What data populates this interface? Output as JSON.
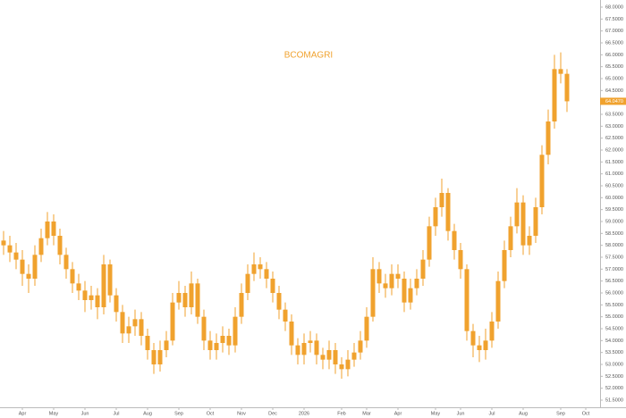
{
  "chart_data": {
    "type": "candlestick",
    "title": "BCOMAGRI",
    "color": "#f0a22e",
    "categories": [
      null,
      null,
      null,
      "Apr",
      null,
      null,
      null,
      null,
      "May",
      null,
      null,
      null,
      null,
      "Jun",
      null,
      null,
      null,
      null,
      "Jul",
      null,
      null,
      null,
      null,
      "Aug",
      null,
      null,
      null,
      null,
      "Sep",
      null,
      null,
      null,
      null,
      "Oct",
      null,
      null,
      null,
      null,
      "Nov",
      null,
      null,
      null,
      null,
      "Dec",
      null,
      null,
      null,
      null,
      "2026",
      null,
      null,
      null,
      null,
      null,
      "Feb",
      null,
      null,
      null,
      "Mar",
      null,
      null,
      null,
      null,
      "Apr",
      null,
      null,
      null,
      null,
      null,
      "May",
      null,
      null,
      null,
      "Jun",
      null,
      null,
      null,
      null,
      "Jul",
      null,
      null,
      null,
      null,
      "Aug",
      null,
      null,
      null,
      null,
      null,
      "Sep",
      null,
      null,
      null,
      "Oct",
      null
    ],
    "open": [
      58.2,
      58.0,
      57.7,
      57.4,
      56.8,
      56.6,
      57.6,
      58.3,
      59.0,
      58.4,
      57.6,
      57.0,
      56.4,
      56.1,
      55.7,
      55.9,
      55.4,
      57.2,
      55.9,
      55.2,
      54.3,
      54.6,
      54.9,
      54.2,
      53.6,
      53.0,
      53.6,
      54.0,
      55.6,
      56.0,
      55.4,
      56.4,
      55.0,
      54.0,
      53.6,
      53.9,
      54.2,
      53.8,
      55.0,
      56.0,
      56.8,
      57.2,
      57.0,
      56.6,
      56.0,
      55.3,
      54.8,
      53.8,
      53.4,
      53.9,
      54.0,
      53.4,
      53.2,
      53.6,
      53.0,
      52.8,
      53.2,
      53.5,
      54.0,
      55.0,
      57.0,
      56.4,
      56.2,
      56.8,
      56.6,
      55.6,
      56.2,
      56.6,
      57.4,
      58.8,
      59.6,
      60.2,
      58.6,
      57.8,
      57.0,
      54.4,
      53.8,
      53.6,
      54.0,
      54.8,
      56.5,
      57.8,
      58.8,
      59.8,
      58.0,
      58.4,
      59.6,
      61.8,
      63.2,
      65.4,
      65.2,
      null,
      null,
      null,
      null
    ],
    "high": [
      58.6,
      58.4,
      58.1,
      57.8,
      57.2,
      58.0,
      58.7,
      59.4,
      59.3,
      58.7,
      57.9,
      57.3,
      56.8,
      56.5,
      56.3,
      56.2,
      57.6,
      57.4,
      56.2,
      55.5,
      55.0,
      55.3,
      55.2,
      54.5,
      53.9,
      54.0,
      54.4,
      56.0,
      56.5,
      56.3,
      56.9,
      56.6,
      55.3,
      54.4,
      54.3,
      54.6,
      54.5,
      55.4,
      56.4,
      57.2,
      57.7,
      57.5,
      57.3,
      56.9,
      56.3,
      55.6,
      55.1,
      54.1,
      54.3,
      54.4,
      54.3,
      53.7,
      54.0,
      53.9,
      53.3,
      53.6,
      53.9,
      54.4,
      55.4,
      57.5,
      57.3,
      56.8,
      57.2,
      57.2,
      56.9,
      56.6,
      57.0,
      57.8,
      59.2,
      60.0,
      60.8,
      60.4,
      58.9,
      58.1,
      57.2,
      54.7,
      54.2,
      54.5,
      55.2,
      56.9,
      58.2,
      59.2,
      60.4,
      60.1,
      58.8,
      60.0,
      62.2,
      63.7,
      66.0,
      66.1,
      65.4,
      null,
      null,
      null,
      null
    ],
    "low": [
      57.6,
      57.3,
      57.0,
      56.3,
      56.0,
      56.3,
      57.3,
      58.0,
      58.0,
      57.2,
      56.6,
      56.0,
      55.7,
      55.2,
      55.3,
      54.9,
      55.1,
      55.6,
      54.8,
      53.9,
      53.9,
      54.2,
      53.8,
      53.2,
      52.6,
      52.7,
      53.3,
      53.8,
      55.3,
      55.0,
      55.1,
      54.7,
      53.6,
      53.2,
      53.2,
      53.5,
      53.4,
      53.5,
      54.7,
      55.7,
      56.5,
      56.6,
      56.2,
      55.6,
      54.9,
      54.4,
      53.4,
      53.0,
      53.0,
      53.5,
      53.0,
      52.8,
      52.8,
      52.6,
      52.4,
      52.5,
      52.9,
      53.2,
      53.7,
      54.8,
      56.0,
      55.8,
      55.9,
      56.2,
      55.2,
      55.3,
      55.9,
      56.3,
      57.1,
      58.4,
      59.2,
      58.2,
      57.4,
      56.6,
      54.0,
      53.3,
      53.1,
      53.2,
      53.7,
      54.5,
      56.2,
      57.5,
      58.5,
      57.6,
      57.6,
      58.1,
      59.3,
      61.4,
      62.9,
      64.8,
      63.6,
      null,
      null,
      null,
      null
    ],
    "close": [
      58.0,
      57.7,
      57.4,
      56.8,
      56.6,
      57.6,
      58.3,
      59.0,
      58.4,
      57.6,
      57.0,
      56.4,
      56.1,
      55.7,
      55.9,
      55.4,
      57.2,
      55.9,
      55.2,
      54.3,
      54.6,
      54.9,
      54.2,
      53.6,
      53.0,
      53.6,
      54.0,
      55.6,
      56.0,
      55.4,
      56.4,
      55.0,
      54.0,
      53.6,
      53.9,
      54.2,
      53.8,
      55.0,
      56.0,
      56.8,
      57.2,
      57.0,
      56.6,
      56.0,
      55.3,
      54.8,
      53.8,
      53.4,
      53.9,
      54.0,
      53.4,
      53.2,
      53.6,
      53.0,
      52.8,
      53.2,
      53.5,
      54.0,
      55.0,
      57.0,
      56.4,
      56.2,
      56.8,
      56.6,
      55.6,
      56.2,
      56.6,
      57.4,
      58.8,
      59.6,
      60.2,
      58.6,
      57.8,
      57.0,
      54.4,
      53.8,
      53.6,
      54.0,
      54.8,
      56.5,
      57.8,
      58.8,
      59.8,
      58.0,
      58.4,
      59.6,
      61.8,
      63.2,
      65.4,
      65.2,
      64.047,
      null,
      null,
      null,
      null
    ],
    "last_price": {
      "value": 64.047,
      "label": "64.0470"
    },
    "ylim": [
      51.2,
      68.3
    ],
    "yticks": [
      {
        "value": 68.0,
        "label": "68.0000"
      },
      {
        "value": 67.5,
        "label": "67.5000"
      },
      {
        "value": 67.0,
        "label": "67.0000"
      },
      {
        "value": 66.5,
        "label": "66.5000"
      },
      {
        "value": 66.0,
        "label": "66.0000"
      },
      {
        "value": 65.5,
        "label": "65.5000"
      },
      {
        "value": 65.0,
        "label": "65.0000"
      },
      {
        "value": 64.5,
        "label": "64.5000"
      },
      {
        "value": 63.5,
        "label": "63.5000"
      },
      {
        "value": 63.0,
        "label": "63.0000"
      },
      {
        "value": 62.5,
        "label": "62.5000"
      },
      {
        "value": 62.0,
        "label": "62.0000"
      },
      {
        "value": 61.5,
        "label": "61.5000"
      },
      {
        "value": 61.0,
        "label": "61.0000"
      },
      {
        "value": 60.5,
        "label": "60.5000"
      },
      {
        "value": 60.0,
        "label": "60.0000"
      },
      {
        "value": 59.5,
        "label": "59.5000"
      },
      {
        "value": 59.0,
        "label": "59.0000"
      },
      {
        "value": 58.5,
        "label": "58.5000"
      },
      {
        "value": 58.0,
        "label": "58.0000"
      },
      {
        "value": 57.5,
        "label": "57.5000"
      },
      {
        "value": 57.0,
        "label": "57.0000"
      },
      {
        "value": 56.5,
        "label": "56.5000"
      },
      {
        "value": 56.0,
        "label": "56.0000"
      },
      {
        "value": 55.5,
        "label": "55.5000"
      },
      {
        "value": 55.0,
        "label": "55.0000"
      },
      {
        "value": 54.5,
        "label": "54.5000"
      },
      {
        "value": 54.0,
        "label": "54.0000"
      },
      {
        "value": 53.5,
        "label": "53.5000"
      },
      {
        "value": 53.0,
        "label": "53.0000"
      },
      {
        "value": 52.5,
        "label": "52.5000"
      },
      {
        "value": 52.0,
        "label": "52.0000"
      },
      {
        "value": 51.5,
        "label": "51.5000"
      }
    ],
    "grid": false
  }
}
